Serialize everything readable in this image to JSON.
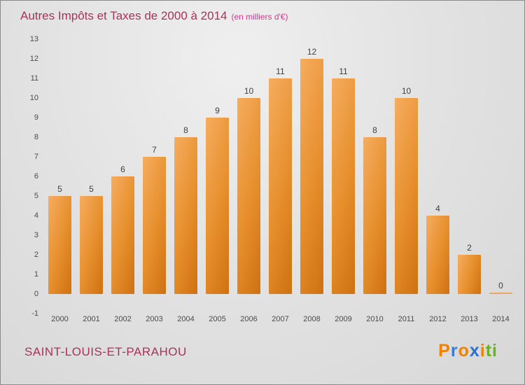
{
  "header": {
    "title": "Autres Impôts et Taxes de 2000 à 2014",
    "subtitle": "(en milliers d'€)"
  },
  "chart_data": {
    "type": "bar",
    "title": "Autres Impôts et Taxes de 2000 à 2014",
    "subtitle": "(en milliers d'€)",
    "categories": [
      "2000",
      "2001",
      "2002",
      "2003",
      "2004",
      "2005",
      "2006",
      "2007",
      "2008",
      "2009",
      "2010",
      "2011",
      "2012",
      "2013",
      "2014"
    ],
    "values": [
      5,
      5,
      6,
      7,
      8,
      9,
      10,
      11,
      12,
      11,
      8,
      10,
      4,
      2,
      0
    ],
    "xlabel": "",
    "ylabel": "",
    "ylim": [
      -1,
      13
    ],
    "y_ticks": [
      -1,
      0,
      1,
      2,
      3,
      4,
      5,
      6,
      7,
      8,
      9,
      10,
      11,
      12,
      13
    ],
    "grid": false,
    "legend_position": "none",
    "bar_color_light": "#f6ad5e",
    "bar_color_dark": "#cf7110"
  },
  "footer": {
    "commune": "SAINT-LOUIS-ET-PARAHOU",
    "logo_letters": [
      {
        "ch": "P",
        "color": "#ef8200"
      },
      {
        "ch": "r",
        "color": "#3a7bd5"
      },
      {
        "ch": "o",
        "color": "#ef8200"
      },
      {
        "ch": "x",
        "color": "#2d6fc9"
      },
      {
        "ch": "i",
        "color": "#ef8200"
      },
      {
        "ch": "t",
        "color": "#69b41e"
      },
      {
        "ch": "i",
        "color": "#69b41e"
      }
    ]
  }
}
